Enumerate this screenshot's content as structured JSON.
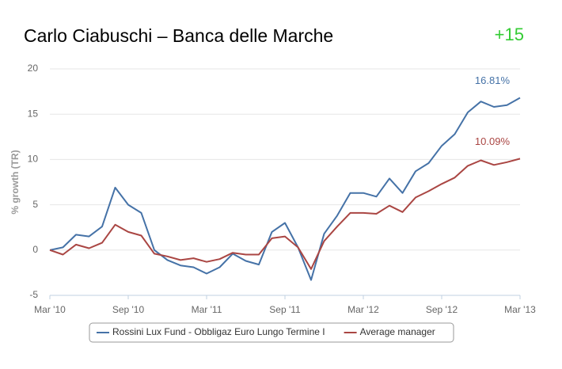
{
  "header": {
    "title": "Carlo Ciabuschi – Banca delle Marche",
    "score": "+15"
  },
  "chart_data": {
    "type": "line",
    "y_label": "% growth (TR)",
    "categories": [
      "Mar '10",
      null,
      null,
      null,
      null,
      null,
      "Sep '10",
      null,
      null,
      null,
      null,
      null,
      "Mar '11",
      null,
      null,
      null,
      null,
      null,
      "Sep '11",
      null,
      null,
      null,
      null,
      null,
      "Mar '12",
      null,
      null,
      null,
      null,
      null,
      "Sep '12",
      null,
      null,
      null,
      null,
      null,
      "Mar '13"
    ],
    "series": [
      {
        "name": "Rossini Lux Fund - Obbligaz Euro Lungo Termine I",
        "color": "#4572a7",
        "values": [
          0,
          0.3,
          1.7,
          1.5,
          2.6,
          6.9,
          5.0,
          4.1,
          0,
          -1.1,
          -1.7,
          -1.9,
          -2.6,
          -1.9,
          -0.4,
          -1.2,
          -1.6,
          2.0,
          3.0,
          0.3,
          -3.3,
          1.8,
          3.8,
          6.3,
          6.3,
          5.9,
          7.9,
          6.3,
          8.7,
          9.6,
          11.5,
          12.8,
          15.2,
          16.4,
          15.8,
          16.0,
          16.81
        ],
        "value_labels": [
          null,
          null,
          null,
          null,
          null,
          null,
          null,
          null,
          null,
          null,
          null,
          null,
          null,
          null,
          null,
          null,
          null,
          null,
          null,
          null,
          null,
          null,
          null,
          null,
          null,
          null,
          null,
          null,
          null,
          null,
          null,
          null,
          null,
          null,
          null,
          null,
          "16.81%"
        ]
      },
      {
        "name": "Average manager",
        "color": "#aa4643",
        "values": [
          0,
          -0.5,
          0.6,
          0.2,
          0.8,
          2.8,
          2.0,
          1.6,
          -0.4,
          -0.7,
          -1.1,
          -0.9,
          -1.3,
          -1.0,
          -0.3,
          -0.5,
          -0.5,
          1.3,
          1.5,
          0.3,
          -2.1,
          1.0,
          2.6,
          4.1,
          4.1,
          4.0,
          4.9,
          4.2,
          5.8,
          6.5,
          7.3,
          8.0,
          9.3,
          9.9,
          9.4,
          9.7,
          10.09
        ],
        "value_labels": [
          null,
          null,
          null,
          null,
          null,
          null,
          null,
          null,
          null,
          null,
          null,
          null,
          null,
          null,
          null,
          null,
          null,
          null,
          null,
          null,
          null,
          null,
          null,
          null,
          null,
          null,
          null,
          null,
          null,
          null,
          null,
          null,
          null,
          null,
          null,
          null,
          "10.09%"
        ]
      }
    ],
    "ylim": [
      -5,
      20
    ],
    "yticks": [
      -5,
      0,
      5,
      10,
      15,
      20
    ],
    "grid": true
  }
}
